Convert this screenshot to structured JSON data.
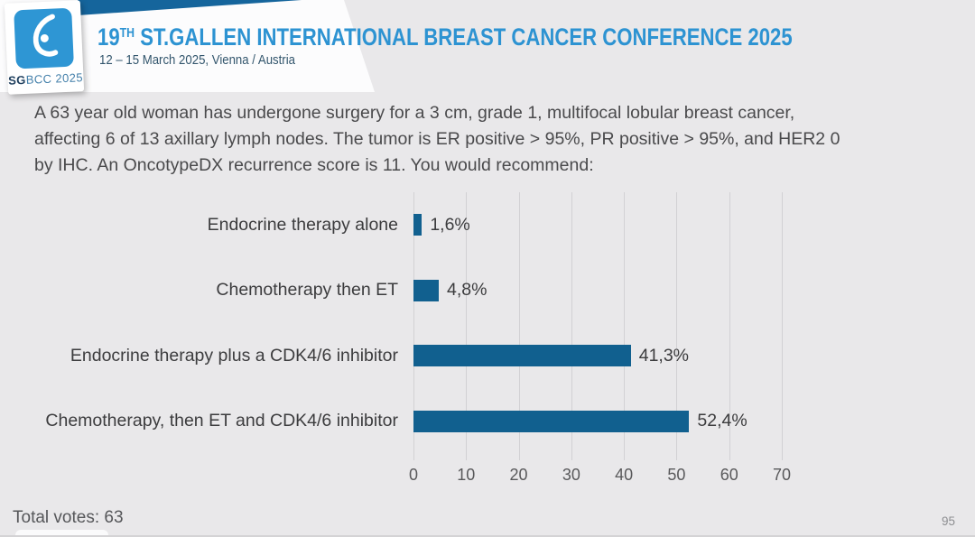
{
  "header": {
    "logo": {
      "symbol": "sgbcc-breast-symbol",
      "text_bold": "SG",
      "text_rest": "BCC 2025"
    },
    "title_number": "19",
    "title_superscript": "TH",
    "title_rest": " ST.GALLEN INTERNATIONAL BREAST CANCER CONFERENCE 2025",
    "subtitle": "12 – 15 March 2025, Vienna / Austria"
  },
  "question": {
    "lines": [
      "A 63 year old woman has undergone surgery for a 3 cm, grade 1, multifocal lobular breast cancer,",
      "affecting 6 of 13 axillary lymph nodes. The tumor is ER positive > 95%, PR positive > 95%, and HER2 0",
      "by IHC. An OncotypeDX recurrence score is 11. You would recommend:"
    ]
  },
  "chart_data": {
    "type": "bar",
    "orientation": "horizontal",
    "title": "A 63 year old woman has undergone surgery for a 3 cm, grade 1, multifocal lobular breast cancer, affecting 6 of 13 axillary lymph nodes. The tumor is ER positive > 95%, PR positive > 95%, and HER2 0 by IHC. An OncotypeDX recurrence score is 11. You would recommend:",
    "categories": [
      "Endocrine therapy alone",
      "Chemotherapy then ET",
      "Endocrine therapy plus a CDK4/6 inhibitor",
      "Chemotherapy, then ET and CDK4/6 inhibitor"
    ],
    "values": [
      1.6,
      4.8,
      41.3,
      52.4
    ],
    "value_labels": [
      "1,6%",
      "4,8%",
      "41,3%",
      "52,4%"
    ],
    "xlabel": "",
    "ylabel": "",
    "xlim": [
      0,
      70
    ],
    "ticks": [
      0,
      10,
      20,
      30,
      40,
      50,
      60,
      70
    ],
    "grid": true,
    "legend": false,
    "bar_color": "#11608f"
  },
  "footer": {
    "total_votes": "Total votes: 63",
    "page_number": "95"
  },
  "colors": {
    "slide_background": "#e9e8ea",
    "header_band": "#fcfcfd",
    "accent_blue": "#2d93d2",
    "navy_wedge": "#15659c",
    "logo_blue": "#2e96d4",
    "bar_blue": "#11608f",
    "text_gray": "#4a4a4c"
  }
}
